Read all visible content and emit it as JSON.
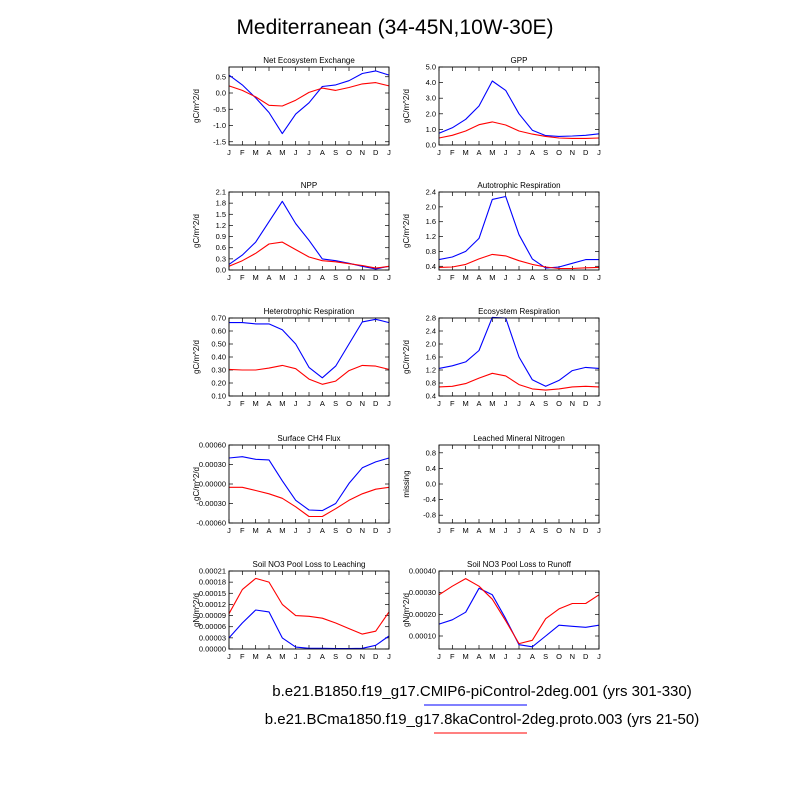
{
  "figure": {
    "title": "Mediterranean (34-45N,10W-30E)",
    "months": [
      "J",
      "F",
      "M",
      "A",
      "M",
      "J",
      "J",
      "A",
      "S",
      "O",
      "N",
      "D",
      "J"
    ],
    "legend": [
      {
        "label": "b.e21.B1850.f19_g17.CMIP6-piControl-2deg.001 (yrs 301-330)",
        "color": "#0000ff"
      },
      {
        "label": "b.e21.BCma1850.f19_g17.8kaControl-2deg.proto.003 (yrs 21-50)",
        "color": "#ff0000"
      }
    ]
  },
  "chart_data": [
    {
      "type": "line",
      "title": "Net Ecosystem Exchange",
      "ylabel": "gC/m^2/d",
      "ylim": [
        -1.6,
        0.8
      ],
      "yticks": [
        0.5,
        0.0,
        -0.5,
        -1.0,
        -1.5
      ],
      "yticklabels": [
        "0.5",
        "0.0",
        "-0.5",
        "-1.0",
        "-1.5"
      ],
      "series": [
        {
          "color": "#0000ff",
          "values": [
            0.55,
            0.25,
            -0.15,
            -0.6,
            -1.25,
            -0.65,
            -0.3,
            0.2,
            0.25,
            0.38,
            0.6,
            0.68,
            0.55
          ]
        },
        {
          "color": "#ff0000",
          "values": [
            0.22,
            0.08,
            -0.12,
            -0.38,
            -0.4,
            -0.22,
            0.02,
            0.15,
            0.08,
            0.17,
            0.28,
            0.32,
            0.22
          ]
        }
      ]
    },
    {
      "type": "line",
      "title": "GPP",
      "ylabel": "gC/m^2/d",
      "ylim": [
        0.0,
        5.0
      ],
      "yticks": [
        0,
        1,
        2,
        3,
        4,
        5
      ],
      "yticklabels": [
        "0.0",
        "1.0",
        "2.0",
        "3.0",
        "4.0",
        "5.0"
      ],
      "series": [
        {
          "color": "#0000ff",
          "values": [
            0.75,
            1.1,
            1.65,
            2.5,
            4.1,
            3.5,
            2.0,
            0.95,
            0.6,
            0.55,
            0.58,
            0.62,
            0.72
          ]
        },
        {
          "color": "#ff0000",
          "values": [
            0.45,
            0.62,
            0.9,
            1.3,
            1.48,
            1.28,
            0.9,
            0.7,
            0.55,
            0.45,
            0.42,
            0.42,
            0.45
          ]
        }
      ]
    },
    {
      "type": "line",
      "title": "NPP",
      "ylabel": "gC/m^2/d",
      "ylim": [
        0.0,
        2.1
      ],
      "yticks": [
        0.0,
        0.3,
        0.6,
        0.9,
        1.2,
        1.5,
        1.8,
        2.1
      ],
      "yticklabels": [
        "0.0",
        "0.3",
        "0.6",
        "0.9",
        "1.2",
        "1.5",
        "1.8",
        "2.1"
      ],
      "series": [
        {
          "color": "#0000ff",
          "values": [
            0.15,
            0.4,
            0.75,
            1.3,
            1.85,
            1.25,
            0.8,
            0.3,
            0.25,
            0.18,
            0.1,
            0.03,
            0.1
          ]
        },
        {
          "color": "#ff0000",
          "values": [
            0.1,
            0.25,
            0.45,
            0.7,
            0.75,
            0.55,
            0.35,
            0.25,
            0.22,
            0.17,
            0.12,
            0.05,
            0.1
          ]
        }
      ]
    },
    {
      "type": "line",
      "title": "Autotrophic Respiration",
      "ylabel": "gC/m^2/d",
      "ylim": [
        0.3,
        2.4
      ],
      "yticks": [
        0.4,
        0.8,
        1.2,
        1.6,
        2.0,
        2.4
      ],
      "yticklabels": [
        "0.4",
        "0.8",
        "1.2",
        "1.6",
        "2.0",
        "2.4"
      ],
      "series": [
        {
          "color": "#0000ff",
          "values": [
            0.58,
            0.65,
            0.8,
            1.15,
            2.2,
            2.28,
            1.25,
            0.6,
            0.35,
            0.38,
            0.48,
            0.58,
            0.58
          ]
        },
        {
          "color": "#ff0000",
          "values": [
            0.37,
            0.38,
            0.45,
            0.6,
            0.72,
            0.68,
            0.55,
            0.45,
            0.38,
            0.34,
            0.34,
            0.36,
            0.37
          ]
        }
      ]
    },
    {
      "type": "line",
      "title": "Heterotrophic Respiration",
      "ylabel": "gC/m^2/d",
      "ylim": [
        0.1,
        0.7
      ],
      "yticks": [
        0.1,
        0.2,
        0.3,
        0.4,
        0.5,
        0.6,
        0.7
      ],
      "yticklabels": [
        "0.10",
        "0.20",
        "0.30",
        "0.40",
        "0.50",
        "0.60",
        "0.70"
      ],
      "series": [
        {
          "color": "#0000ff",
          "values": [
            0.665,
            0.665,
            0.655,
            0.655,
            0.61,
            0.5,
            0.32,
            0.24,
            0.33,
            0.5,
            0.67,
            0.69,
            0.665
          ]
        },
        {
          "color": "#ff0000",
          "values": [
            0.305,
            0.3,
            0.3,
            0.315,
            0.335,
            0.31,
            0.23,
            0.19,
            0.215,
            0.295,
            0.335,
            0.33,
            0.305
          ]
        }
      ]
    },
    {
      "type": "line",
      "title": "Ecosystem Respiration",
      "ylabel": "gC/m^2/d",
      "ylim": [
        0.4,
        2.8
      ],
      "yticks": [
        0.4,
        0.8,
        1.2,
        1.6,
        2.0,
        2.4,
        2.8
      ],
      "yticklabels": [
        "0.4",
        "0.8",
        "1.2",
        "1.6",
        "2.0",
        "2.4",
        "2.8"
      ],
      "series": [
        {
          "color": "#0000ff",
          "values": [
            1.25,
            1.33,
            1.45,
            1.8,
            2.82,
            2.8,
            1.6,
            0.9,
            0.7,
            0.88,
            1.18,
            1.28,
            1.25
          ]
        },
        {
          "color": "#ff0000",
          "values": [
            0.68,
            0.7,
            0.78,
            0.95,
            1.1,
            1.02,
            0.75,
            0.62,
            0.58,
            0.62,
            0.68,
            0.7,
            0.68
          ]
        }
      ]
    },
    {
      "type": "line",
      "title": "Surface CH4 Flux",
      "ylabel": "gC/m^2/d",
      "ylim": [
        -0.0006,
        0.0006
      ],
      "yticks": [
        0.0006,
        0.0003,
        0.0,
        -0.0003,
        -0.0006
      ],
      "yticklabels": [
        "0.00060",
        "0.00030",
        "0.00000",
        "-0.00030",
        "-0.00060"
      ],
      "series": [
        {
          "color": "#0000ff",
          "values": [
            0.0004,
            0.00042,
            0.00038,
            0.00037,
            5e-05,
            -0.00025,
            -0.0004,
            -0.00041,
            -0.0003,
            1e-05,
            0.00025,
            0.00034,
            0.0004
          ]
        },
        {
          "color": "#ff0000",
          "values": [
            -5e-05,
            -5e-05,
            -0.0001,
            -0.00015,
            -0.00022,
            -0.00035,
            -0.0005,
            -0.0005,
            -0.00038,
            -0.00025,
            -0.00015,
            -8e-05,
            -5e-05
          ]
        }
      ]
    },
    {
      "type": "line",
      "title": "Leached Mineral Nitrogen",
      "ylabel": "missing",
      "ylim": [
        -1.0,
        1.0
      ],
      "yticks": [
        0.8,
        0.4,
        0.0,
        -0.4,
        -0.8
      ],
      "yticklabels": [
        "0.8",
        "0.4",
        "0.0",
        "-0.4",
        "-0.8"
      ],
      "series": []
    },
    {
      "type": "line",
      "title": "Soil NO3 Pool Loss to Leaching",
      "ylabel": "gN/m^2/d",
      "ylim": [
        0.0,
        0.00021
      ],
      "yticks": [
        0.0,
        3e-05,
        6e-05,
        9e-05,
        0.00012,
        0.00015,
        0.00018,
        0.00021
      ],
      "yticklabels": [
        "0.00000",
        "0.00003",
        "0.00006",
        "0.00009",
        "0.00012",
        "0.00015",
        "0.00018",
        "0.00021"
      ],
      "series": [
        {
          "color": "#0000ff",
          "values": [
            3e-05,
            7e-05,
            0.000105,
            0.0001,
            3e-05,
            5e-06,
            2e-06,
            2e-06,
            1e-06,
            1e-06,
            2e-06,
            1e-05,
            3.5e-05
          ]
        },
        {
          "color": "#ff0000",
          "values": [
            9.5e-05,
            0.00016,
            0.00019,
            0.00018,
            0.00012,
            9e-05,
            8.8e-05,
            8.3e-05,
            7e-05,
            5.5e-05,
            4e-05,
            4.8e-05,
            0.0001
          ]
        }
      ]
    },
    {
      "type": "line",
      "title": "Soil NO3 Pool Loss to Runoff",
      "ylabel": "gN/m^2/d",
      "ylim": [
        4e-05,
        0.0004
      ],
      "yticks": [
        0.0001,
        0.0002,
        0.0003,
        0.0004
      ],
      "yticklabels": [
        "0.00010",
        "0.00020",
        "0.00030",
        "0.00040"
      ],
      "series": [
        {
          "color": "#0000ff",
          "values": [
            0.000155,
            0.000175,
            0.00021,
            0.00032,
            0.00029,
            0.00018,
            6e-05,
            5e-05,
            0.0001,
            0.00015,
            0.000145,
            0.00014,
            0.00015
          ]
        },
        {
          "color": "#ff0000",
          "values": [
            0.00029,
            0.00033,
            0.000365,
            0.00033,
            0.00027,
            0.00017,
            6.5e-05,
            8e-05,
            0.00018,
            0.000225,
            0.00025,
            0.00025,
            0.00029
          ]
        }
      ]
    }
  ]
}
